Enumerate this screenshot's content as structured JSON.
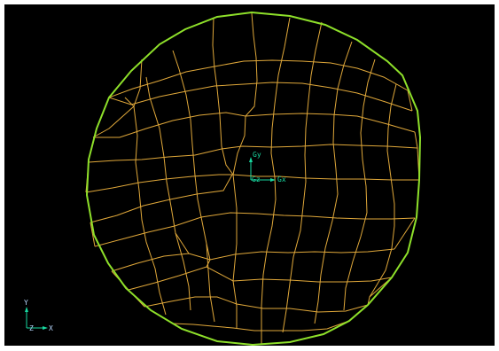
{
  "viewport": {
    "background": "#000000",
    "mesh_color": "#e0a83a",
    "boundary_color": "#8ee02a",
    "triad_color": "#18d8a0"
  },
  "csys_marker": {
    "y_label": "Gy",
    "z_label": "Gz",
    "x_label": "Gx"
  },
  "view_triad": {
    "y_label": "Y",
    "z_label": "Z",
    "x_label": "X"
  }
}
